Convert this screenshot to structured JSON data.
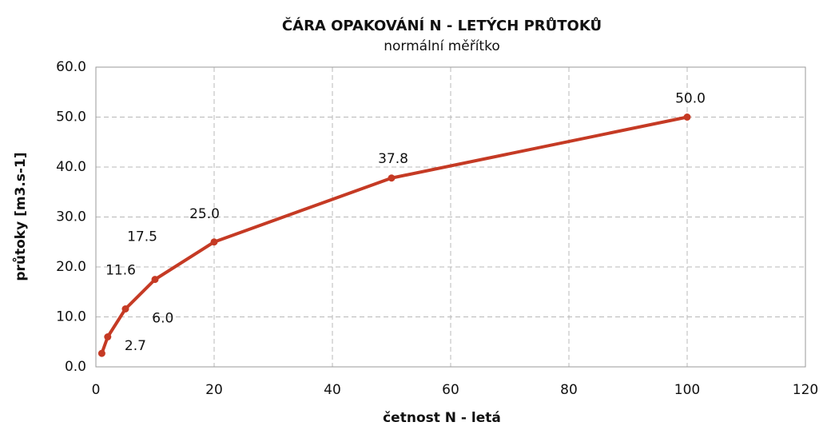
{
  "chart_data": {
    "type": "line",
    "title": "ČÁRA OPAKOVÁNÍ N - LETÝCH PRŮTOKŮ",
    "subtitle": "normální měřítko",
    "xlabel": "četnost N - letá",
    "ylabel": "průtoky [m3.s-1]",
    "x": [
      1,
      2,
      5,
      10,
      20,
      50,
      100
    ],
    "series": [
      {
        "name": "průtoky",
        "color": "#c53a24",
        "values": [
          2.7,
          6.0,
          11.6,
          17.5,
          25.0,
          37.8,
          50.0
        ],
        "value_labels": [
          "2.7",
          "6.0",
          "11.6",
          "17.5",
          "25.0",
          "37.8",
          "50.0"
        ]
      }
    ],
    "xlim": [
      0,
      120
    ],
    "xticks": [
      0,
      20,
      40,
      60,
      80,
      100,
      120
    ],
    "ylim": [
      0,
      60
    ],
    "yticks": [
      {
        "value": 0,
        "label": "0.0"
      },
      {
        "value": 10,
        "label": "10.0"
      },
      {
        "value": 20,
        "label": "20.0"
      },
      {
        "value": 30,
        "label": "30.0"
      },
      {
        "value": 40,
        "label": "40.0"
      },
      {
        "value": 50,
        "label": "50.0"
      },
      {
        "value": 60,
        "label": "60.0"
      }
    ],
    "grid": true
  }
}
